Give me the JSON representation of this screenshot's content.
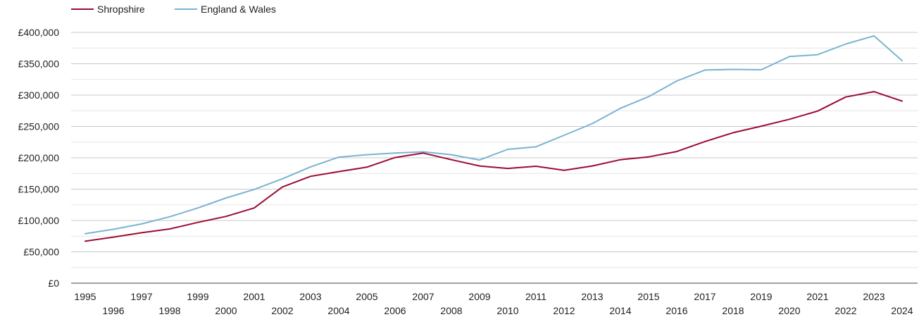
{
  "chart_data": {
    "type": "line",
    "title": "",
    "xlabel": "",
    "ylabel": "",
    "x": [
      1995,
      1996,
      1997,
      1998,
      1999,
      2000,
      2001,
      2002,
      2003,
      2004,
      2005,
      2006,
      2007,
      2008,
      2009,
      2010,
      2011,
      2012,
      2013,
      2014,
      2015,
      2016,
      2017,
      2018,
      2019,
      2020,
      2021,
      2022,
      2023,
      2024
    ],
    "x_tick_labels": [
      "1995",
      "1996",
      "1997",
      "1998",
      "1999",
      "2000",
      "2001",
      "2002",
      "2003",
      "2004",
      "2005",
      "2006",
      "2007",
      "2008",
      "2009",
      "2010",
      "2011",
      "2012",
      "2013",
      "2014",
      "2015",
      "2016",
      "2017",
      "2018",
      "2019",
      "2020",
      "2021",
      "2022",
      "2023",
      "2024"
    ],
    "ylim": [
      0,
      400000
    ],
    "y_ticks": [
      0,
      50000,
      100000,
      150000,
      200000,
      250000,
      300000,
      350000,
      400000
    ],
    "y_tick_labels": [
      "£0",
      "£50,000",
      "£100,000",
      "£150,000",
      "£200,000",
      "£250,000",
      "£300,000",
      "£350,000",
      "£400,000"
    ],
    "grid": true,
    "legend_position": "top-left",
    "series": [
      {
        "name": "Shropshire",
        "color": "#9b0c33",
        "values": [
          67000,
          73500,
          80500,
          86500,
          97000,
          106500,
          120000,
          153500,
          170500,
          178000,
          185000,
          200500,
          207500,
          197000,
          187000,
          183000,
          186500,
          180000,
          187000,
          197000,
          201500,
          210000,
          226000,
          240000,
          250500,
          261500,
          274500,
          297000,
          305500,
          290500
        ]
      },
      {
        "name": "England & Wales",
        "color": "#7ab3d3",
        "values": [
          79000,
          86000,
          94500,
          106000,
          120000,
          136000,
          149500,
          166500,
          185500,
          201000,
          205000,
          207500,
          209500,
          205000,
          196500,
          213500,
          217500,
          236000,
          254500,
          279000,
          297500,
          322500,
          340000,
          341000,
          340500,
          361500,
          364500,
          381500,
          394500,
          355000
        ]
      }
    ]
  }
}
